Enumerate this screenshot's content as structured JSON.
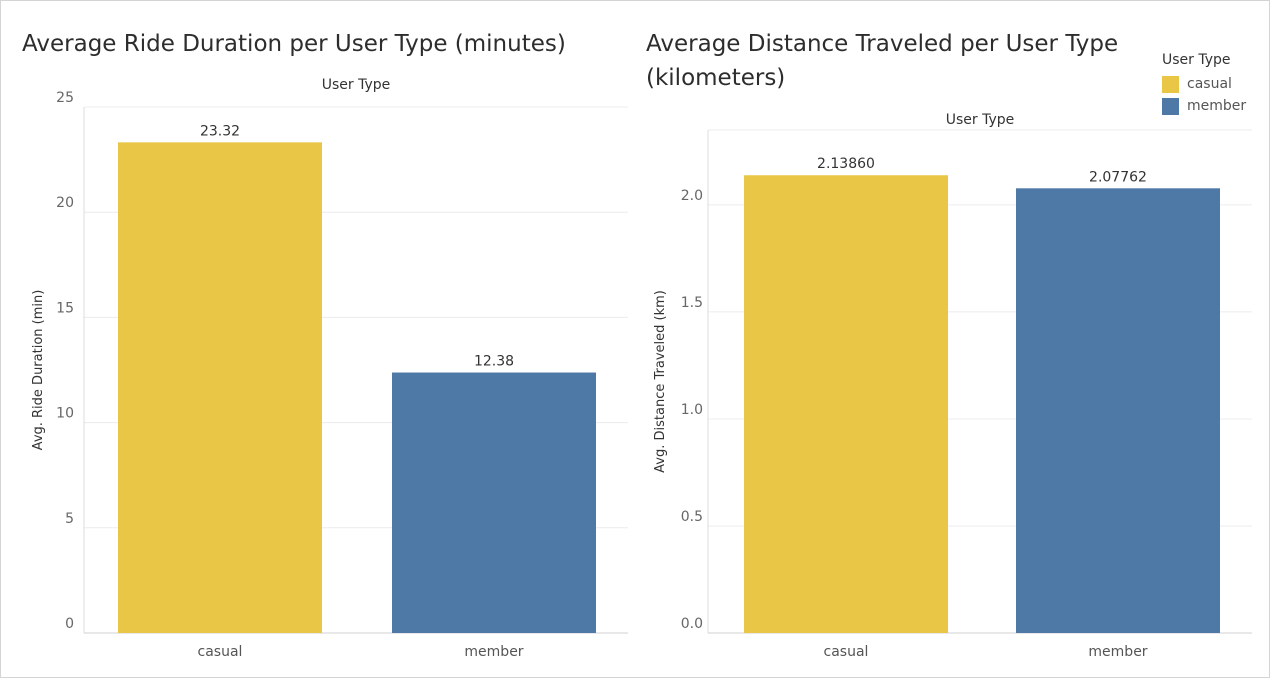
{
  "legend": {
    "title": "User Type",
    "items": [
      {
        "label": "casual",
        "color": "#E9C646"
      },
      {
        "label": "member",
        "color": "#4E79A7"
      }
    ]
  },
  "chart_data": [
    {
      "type": "bar",
      "title": "Average Ride Duration per User Type (minutes)",
      "header": "User Type",
      "xlabel": "",
      "ylabel": "Avg. Ride Duration (min)",
      "categories": [
        "casual",
        "member"
      ],
      "values": [
        23.32,
        12.38
      ],
      "value_labels": [
        "23.32",
        "12.38"
      ],
      "colors": [
        "#E9C646",
        "#4E79A7"
      ],
      "ylim": [
        0,
        25
      ],
      "yticks": [
        0,
        5,
        10,
        15,
        20,
        25
      ],
      "ytick_labels": [
        "0",
        "5",
        "10",
        "15",
        "20",
        "25"
      ],
      "grid": true
    },
    {
      "type": "bar",
      "title": "Average Distance Traveled per User Type (kilometers)",
      "header": "User Type",
      "xlabel": "",
      "ylabel": "Avg. Distance Traveled (km)",
      "categories": [
        "casual",
        "member"
      ],
      "values": [
        2.1386,
        2.07762
      ],
      "value_labels": [
        "2.13860",
        "2.07762"
      ],
      "colors": [
        "#E9C646",
        "#4E79A7"
      ],
      "ylim": [
        0,
        2.35
      ],
      "yticks": [
        0,
        0.5,
        1.0,
        1.5,
        2.0
      ],
      "ytick_labels": [
        "0.0",
        "0.5",
        "1.0",
        "1.5",
        "2.0"
      ],
      "grid": true,
      "legend": "top-right"
    }
  ]
}
